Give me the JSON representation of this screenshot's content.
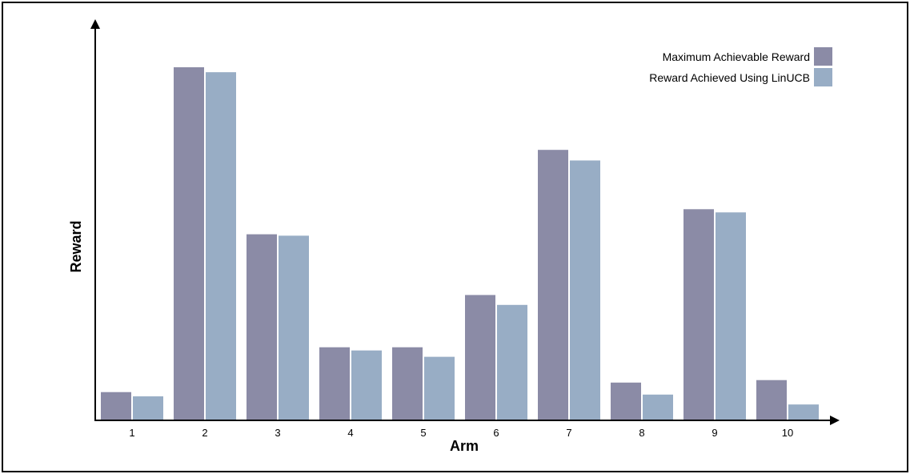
{
  "chart_data": {
    "type": "bar",
    "xlabel": "Arm",
    "ylabel": "Reward",
    "y_ticks_shown": false,
    "grid": false,
    "legend_position": "top-right",
    "ylim": [
      0,
      100
    ],
    "categories": [
      "1",
      "2",
      "3",
      "4",
      "5",
      "6",
      "7",
      "8",
      "9",
      "10"
    ],
    "series": [
      {
        "name": "Maximum Achievable Reward",
        "color": "#8b8ba6",
        "values": [
          8,
          100,
          52.7,
          20.7,
          20.7,
          35.5,
          76.6,
          10.7,
          59.8,
          11.4
        ]
      },
      {
        "name": "Reward Achieved Using LinUCB",
        "color": "#98adc5",
        "values": [
          6.8,
          98.6,
          52.3,
          19.8,
          18,
          32.7,
          73.6,
          7.3,
          58.9,
          4.5
        ]
      }
    ]
  }
}
